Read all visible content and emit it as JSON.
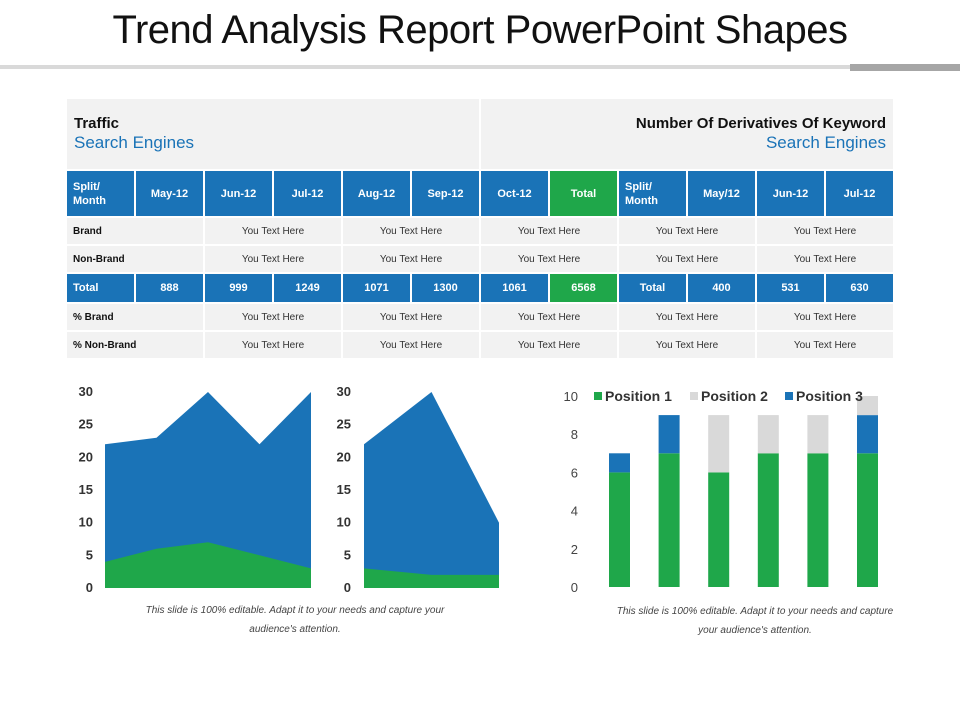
{
  "slide": {
    "title": "Trend Analysis Report PowerPoint Shapes"
  },
  "header": {
    "left_title": "Traffic",
    "left_subtitle": "Search Engines",
    "right_title": "Number Of Derivatives Of Keyword",
    "right_subtitle": "Search Engines"
  },
  "table": {
    "head": [
      "Split/ Month",
      "May-12",
      "Jun-12",
      "Jul-12",
      "Aug-12",
      "Sep-12",
      "Oct-12",
      "Total",
      "Split/ Month",
      "May/12",
      "Jun-12",
      "Jul-12"
    ],
    "rows": [
      {
        "label": "Brand",
        "cells": [
          "You Text Here",
          "You Text Here",
          "You Text Here",
          "You Text Here",
          "You Text Here"
        ]
      },
      {
        "label": "Non-Brand",
        "cells": [
          "You Text Here",
          "You Text Here",
          "You Text Here",
          "You Text Here",
          "You Text Here"
        ]
      }
    ],
    "total_row": [
      "Total",
      "888",
      "999",
      "1249",
      "1071",
      "1300",
      "1061",
      "6568",
      "Total",
      "400",
      "531",
      "630"
    ],
    "rows2": [
      {
        "label": "% Brand",
        "cells": [
          "You Text Here",
          "You Text Here",
          "You Text Here",
          "You Text Here",
          "You Text Here"
        ]
      },
      {
        "label": "% Non-Brand",
        "cells": [
          "You Text Here",
          "You Text Here",
          "You Text Here",
          "You Text Here",
          "You Text Here"
        ]
      }
    ]
  },
  "notes": {
    "left_line1": "This slide is 100% editable. Adapt it to your needs and capture your",
    "left_line2": "audience's attention.",
    "right_line1": "This slide is 100% editable. Adapt it to your needs and capture",
    "right_line2": "your audience's attention."
  },
  "colors": {
    "blue": "#1a73b7",
    "green": "#1fa74a",
    "gray": "#d9d9d9"
  },
  "chart_data": [
    {
      "type": "area",
      "x": [
        "1",
        "2",
        "3",
        "4",
        "5"
      ],
      "ylim": [
        0,
        30
      ],
      "yticks": [
        "0",
        "5",
        "10",
        "15",
        "20",
        "25",
        "30"
      ],
      "series": [
        {
          "values": [
            22,
            23,
            30,
            22,
            30
          ],
          "color": "#1a73b7"
        },
        {
          "values": [
            4,
            6,
            7,
            5,
            3
          ],
          "color": "#1fa74a"
        }
      ]
    },
    {
      "type": "area",
      "x": [
        "1",
        "2",
        "3"
      ],
      "ylim": [
        0,
        30
      ],
      "yticks": [
        "0",
        "5",
        "10",
        "15",
        "20",
        "25",
        "30"
      ],
      "series": [
        {
          "values": [
            22,
            30,
            10
          ],
          "color": "#1a73b7"
        },
        {
          "values": [
            3,
            2,
            2
          ],
          "color": "#1fa74a"
        }
      ]
    },
    {
      "type": "bar",
      "stacked": true,
      "categories": [
        "1",
        "2",
        "3",
        "4",
        "5",
        "6"
      ],
      "ylim": [
        0,
        10
      ],
      "yticks": [
        "0",
        "2",
        "4",
        "6",
        "8",
        "10"
      ],
      "legend": "top",
      "series": [
        {
          "name": "Position 1",
          "values": [
            6,
            7,
            6,
            7,
            7,
            7
          ],
          "color": "#1fa74a"
        },
        {
          "name": "Position 2",
          "values": [
            0,
            0,
            3,
            2,
            2,
            0
          ],
          "color": "#d9d9d9"
        },
        {
          "name": "Position 3",
          "values": [
            1,
            2,
            0,
            0,
            0,
            2
          ],
          "color": "#1a73b7"
        },
        {
          "values": [
            0,
            0,
            0,
            0,
            0,
            1
          ],
          "color": "#d9d9d9"
        }
      ]
    }
  ]
}
